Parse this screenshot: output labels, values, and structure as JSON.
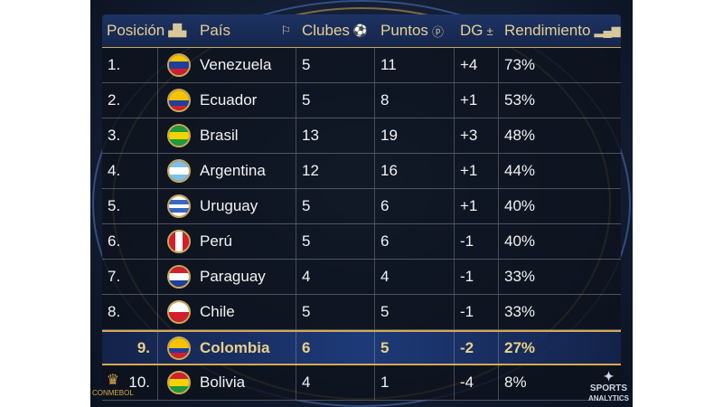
{
  "header": {
    "position": "Posición",
    "country": "País",
    "clubs": "Clubes",
    "points": "Puntos",
    "dg": "DG",
    "performance": "Rendimiento"
  },
  "header_icons": {
    "position": "podium-icon",
    "country": "flag-icon",
    "clubs": "soccer-ball-icon",
    "points": "points-icon",
    "dg": "plus-minus-icon",
    "performance": "bar-chart-icon"
  },
  "rows": [
    {
      "pos": "1.",
      "country": "Venezuela",
      "clubs": "5",
      "points": "11",
      "dg": "+4",
      "perf": "73%",
      "flag": [
        "#f4c400",
        "#1f3f9a",
        "#cf1f2e"
      ]
    },
    {
      "pos": "2.",
      "country": "Ecuador",
      "clubs": "5",
      "points": "8",
      "dg": "+1",
      "perf": "53%",
      "flag": [
        "#f4c400",
        "#f4c400",
        "#1f3f9a",
        "#cf1f2e"
      ]
    },
    {
      "pos": "3.",
      "country": "Brasil",
      "clubs": "13",
      "points": "19",
      "dg": "+3",
      "perf": "48%",
      "flag": [
        "#1f9a3a",
        "#f4d400",
        "#1f9a3a"
      ]
    },
    {
      "pos": "4.",
      "country": "Argentina",
      "clubs": "12",
      "points": "16",
      "dg": "+1",
      "perf": "44%",
      "flag": [
        "#7cc0ea",
        "#ffffff",
        "#7cc0ea"
      ]
    },
    {
      "pos": "5.",
      "country": "Uruguay",
      "clubs": "5",
      "points": "6",
      "dg": "+1",
      "perf": "40%",
      "flag": [
        "#ffffff",
        "#3a66c4",
        "#ffffff",
        "#3a66c4",
        "#ffffff"
      ]
    },
    {
      "pos": "6.",
      "country": "Perú",
      "clubs": "5",
      "points": "6",
      "dg": "-1",
      "perf": "40%",
      "flag": [
        "#d21f2e",
        "#ffffff",
        "#d21f2e"
      ],
      "vertical": true
    },
    {
      "pos": "7.",
      "country": "Paraguay",
      "clubs": "4",
      "points": "4",
      "dg": "-1",
      "perf": "33%",
      "flag": [
        "#d21f2e",
        "#ffffff",
        "#1f3f9a"
      ]
    },
    {
      "pos": "8.",
      "country": "Chile",
      "clubs": "5",
      "points": "5",
      "dg": "-1",
      "perf": "33%",
      "flag": [
        "#ffffff",
        "#d21f2e"
      ]
    },
    {
      "pos": "9.",
      "country": "Colombia",
      "clubs": "6",
      "points": "5",
      "dg": "-2",
      "perf": "27%",
      "flag": [
        "#f4c400",
        "#f4c400",
        "#1f3f9a",
        "#cf1f2e"
      ],
      "highlight": true
    },
    {
      "pos": "10.",
      "country": "Bolivia",
      "clubs": "4",
      "points": "1",
      "dg": "-4",
      "perf": "8%",
      "flag": [
        "#d21f2e",
        "#f4d400",
        "#1f9a3a"
      ]
    }
  ],
  "logos": {
    "left": "CONMEBOL",
    "right_1": "SPORTS",
    "right_2": "ANALYTICS"
  },
  "colors": {
    "accent_gold": "#d6aa50",
    "header_bg": "#1d3363",
    "highlight_bg": "#1d3a78"
  }
}
